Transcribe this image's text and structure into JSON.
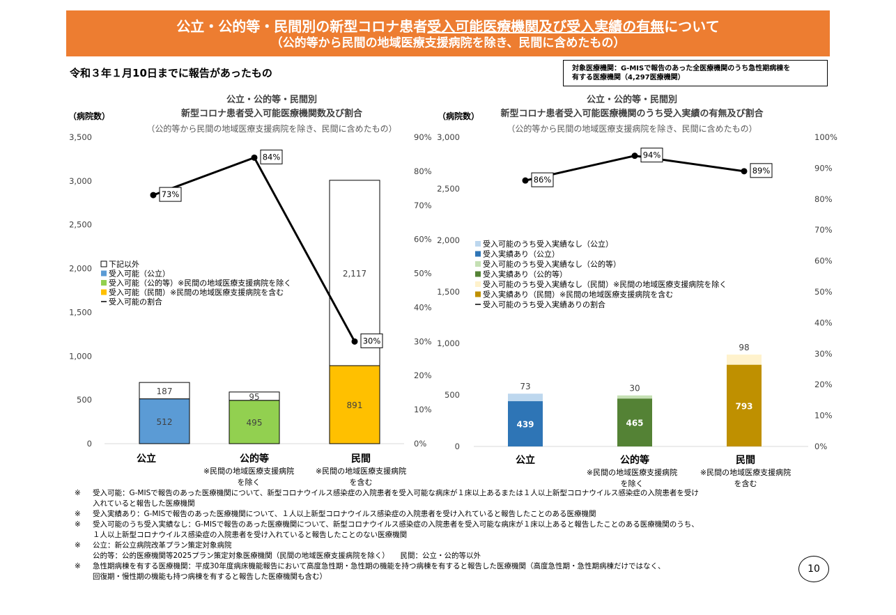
{
  "header": {
    "title_a": "公立・公的等・民間別の新型コロナ患者",
    "title_b": "受入可能医療機関及び受入実績の有無",
    "title_c": "について",
    "subtitle": "（公的等から民間の地域医療支援病院を除き、民間に含めたもの）"
  },
  "date_note": "令和３年１月10日までに報告があったもの",
  "info_box": {
    "line1": "対象医療機関：G-MISで報告のあった全医療機関のうち急性期病棟を",
    "line2": "有する医療機関（4,297医療機関）"
  },
  "chart_data": [
    {
      "type": "bar",
      "title_lines": [
        "公立・公的等・民間別",
        "新型コロナ患者受入可能医療機関数及び割合"
      ],
      "subtitle": "（公的等から民間の地域医療支援病院を除き、民間に含めたもの）",
      "ylabel": "（病院数）",
      "ylim": [
        0,
        3500
      ],
      "yticks": [
        "3,500",
        "3,000",
        "2,500",
        "2,000",
        "1,500",
        "1,000",
        "500",
        "0"
      ],
      "y2lim": [
        0,
        90
      ],
      "y2ticks": [
        "90%",
        "80%",
        "70%",
        "60%",
        "50%",
        "40%",
        "30%",
        "20%",
        "10%",
        "0%"
      ],
      "categories": [
        {
          "label": "公立",
          "note": []
        },
        {
          "label": "公的等",
          "note": [
            "※民間の地域医療支援病院",
            "を除く"
          ]
        },
        {
          "label": "民間",
          "note": [
            "※民間の地域医療支援病院",
            "を含む"
          ]
        }
      ],
      "bars": [
        {
          "bottom": 512,
          "top": 187,
          "bottom_label": "512",
          "top_label": "187",
          "bottom_color": "#5b9bd5"
        },
        {
          "bottom": 495,
          "top": 95,
          "bottom_label": "495",
          "top_label": "95",
          "bottom_color": "#92d050"
        },
        {
          "bottom": 891,
          "top": 2117,
          "bottom_label": "891",
          "top_label": "2,117",
          "bottom_color": "#ffc000"
        }
      ],
      "line": {
        "values": [
          73,
          84,
          30
        ],
        "labels": [
          "73%",
          "84%",
          "30%"
        ]
      },
      "legend": [
        {
          "label": "下記以外",
          "color": "#ffffff",
          "kind": "box"
        },
        {
          "label": "受入可能（公立）",
          "color": "#5b9bd5",
          "kind": "box"
        },
        {
          "label": "受入可能（公的等）※民間の地域医療支援病院を除く",
          "color": "#92d050",
          "kind": "box"
        },
        {
          "label": "受入可能（民間）※民間の地域医療支援病院を含む",
          "color": "#ffc000",
          "kind": "box"
        },
        {
          "label": "受入可能の割合",
          "color": "#000000",
          "kind": "line"
        }
      ],
      "grid": false
    },
    {
      "type": "bar",
      "title_lines": [
        "公立・公的等・民間別",
        "新型コロナ患者受入可能医療機関のうち受入実績の有無及び割合"
      ],
      "subtitle": "（公的等から民間の地域医療支援病院を除き、民間に含めたもの）",
      "ylabel": "（病院数）",
      "ylim": [
        0,
        3000
      ],
      "yticks": [
        "3,000",
        "2,500",
        "2,000",
        "1,500",
        "1,000",
        "500",
        "0"
      ],
      "y2lim": [
        0,
        100
      ],
      "y2ticks": [
        "100%",
        "90%",
        "80%",
        "70%",
        "60%",
        "50%",
        "40%",
        "30%",
        "20%",
        "10%",
        "0%"
      ],
      "categories": [
        {
          "label": "公立",
          "note": []
        },
        {
          "label": "公的等",
          "note": [
            "※民間の地域医療支援病院",
            "を除く"
          ]
        },
        {
          "label": "民間",
          "note": [
            "※民間の地域医療支援病院",
            "を含む"
          ]
        }
      ],
      "bars": [
        {
          "bottom": 439,
          "top": 73,
          "bottom_label": "439",
          "top_label": "73",
          "bottom_color": "#2e75b6",
          "top_color": "#bdd7ee"
        },
        {
          "bottom": 465,
          "top": 30,
          "bottom_label": "465",
          "top_label": "30",
          "bottom_color": "#548235",
          "top_color": "#c5e0b4"
        },
        {
          "bottom": 793,
          "top": 98,
          "bottom_label": "793",
          "top_label": "98",
          "bottom_color": "#bf9000",
          "top_color": "#fff2cc"
        }
      ],
      "line": {
        "values": [
          86,
          94,
          89
        ],
        "labels": [
          "86%",
          "94%",
          "89%"
        ]
      },
      "legend": [
        {
          "label": "受入可能のうち受入実績なし（公立）",
          "color": "#bdd7ee",
          "kind": "box"
        },
        {
          "label": "受入実績あり（公立）",
          "color": "#2e75b6",
          "kind": "box"
        },
        {
          "label": "受入可能のうち受入実績なし（公的等）",
          "color": "#c5e0b4",
          "kind": "box"
        },
        {
          "label": "受入実績あり（公的等）",
          "color": "#548235",
          "kind": "box"
        },
        {
          "label": "受入可能のうち受入実績なし（民間）※民間の地域医療支援病院を除く",
          "color": "#fff2cc",
          "kind": "box"
        },
        {
          "label": "受入実績あり（民間）※民間の地域医療支援病院を含む",
          "color": "#bf9000",
          "kind": "box"
        },
        {
          "label": "受入可能のうち受入実績ありの割合",
          "color": "#000000",
          "kind": "line"
        }
      ],
      "grid": false
    }
  ],
  "notes": [
    {
      "mark": "※",
      "lines": [
        "受入可能：G-MISで報告のあった医療機関について、新型コロナウイルス感染症の入院患者を受入可能な病床が１床以上あるまたは１人以上新型コロナウイルス感染症の入院患者を受け",
        "入れていると報告した医療機関"
      ]
    },
    {
      "mark": "※",
      "lines": [
        "受入実績あり：G-MISで報告のあった医療機関について、１人以上新型コロナウイルス感染症の入院患者を受け入れていると報告したことのある医療機関"
      ]
    },
    {
      "mark": "※",
      "lines": [
        "受入可能のうち受入実績なし：G-MISで報告のあった医療機関について、新型コロナウイルス感染症の入院患者を受入可能な病床が１床以上あると報告したことのある医療機関のうち、",
        "１人以上新型コロナウイルス感染症の入院患者を受け入れていると報告したことのない医療機関"
      ]
    },
    {
      "mark": "※",
      "lines": [
        "公立：新公立病院改革プラン策定対象病院",
        "公的等：公的医療機関等2025プラン策定対象医療機関（民間の地域医療支援病院を除く）　　民間：公立・公的等以外"
      ]
    },
    {
      "mark": "※",
      "lines": [
        "急性期病棟を有する医療機関：平成30年度病床機能報告において高度急性期・急性期の機能を持つ病棟を有すると報告した医療機関（高度急性期・急性期病棟だけではなく、",
        "回復期・慢性期の機能も持つ病棟を有すると報告した医療機関も含む）"
      ]
    }
  ],
  "page_number": "10"
}
